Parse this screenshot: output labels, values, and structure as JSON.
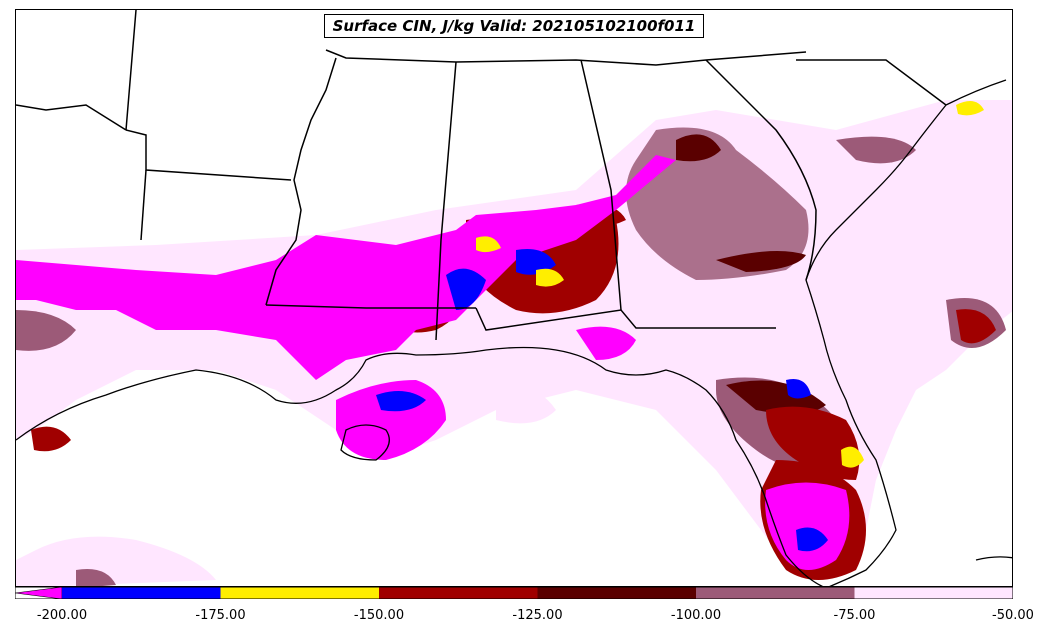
{
  "title": "Surface CIN, J/kg Valid: 202105102100f011",
  "colorbar": {
    "tick_labels": [
      "-200.00",
      "-175.00",
      "-150.00",
      "-125.00",
      "-100.00",
      "-75.00",
      "-50.00"
    ],
    "colors": [
      "#ff00ff",
      "#0000ff",
      "#ffee00",
      "#a00000",
      "#5a0000",
      "#9c5a78",
      "#ffe6ff"
    ],
    "extend": "min"
  }
}
